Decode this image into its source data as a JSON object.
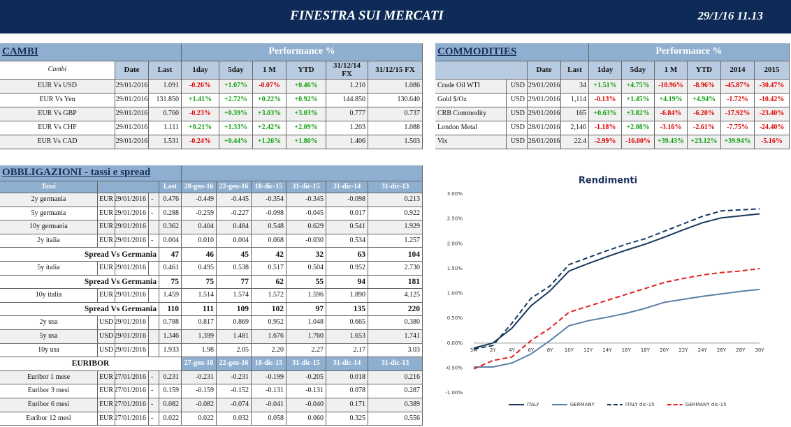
{
  "header": {
    "title": "FINESTRA SUI MERCATI",
    "datetime": "29/1/16 11.13"
  },
  "cambi": {
    "title": "CAMBI",
    "performance": "Performance  %",
    "columns": [
      "Cambi",
      "Date",
      "Last",
      "1day",
      "5day",
      "1 M",
      "YTD",
      "31/12/14 FX",
      "31/12/15  FX"
    ],
    "rows": [
      [
        "EUR Vs USD",
        "29/01/2016",
        "1.091",
        "-0.26%",
        "+1.07%",
        "-0.07%",
        "+0.46%",
        "1.210",
        "1.086"
      ],
      [
        "EUR Vs Yen",
        "29/01/2016",
        "131.850",
        "+1.41%",
        "+2.72%",
        "+0.22%",
        "+0.92%",
        "144.850",
        "130.640"
      ],
      [
        "EUR Vs GBP",
        "29/01/2016",
        "0.760",
        "-0.23%",
        "+0.39%",
        "+3.03%",
        "+3.03%",
        "0.777",
        "0.737"
      ],
      [
        "EUR Vs CHF",
        "29/01/2016",
        "1.111",
        "+0.21%",
        "+1.33%",
        "+2.42%",
        "+2.09%",
        "1.203",
        "1.088"
      ],
      [
        "EUR Vs CAD",
        "29/01/2016",
        "1.531",
        "-0.24%",
        "+0.44%",
        "+1.26%",
        "+1.80%",
        "1.406",
        "1.503"
      ]
    ]
  },
  "commodities": {
    "title": "COMMODITIES",
    "performance": "Performance  %",
    "columns": [
      "Date",
      "Last",
      "1day",
      "5day",
      "1 M",
      "YTD",
      "2014",
      "2015"
    ],
    "rows": [
      [
        "Crude Oil WTI",
        "USD",
        "29/01/2016",
        "34",
        "+1.51%",
        "+4.75%",
        "-10.96%",
        "-8.96%",
        "-45.87%",
        "-30.47%"
      ],
      [
        "Gold $/Oz",
        "USD",
        "29/01/2016",
        "1,114",
        "-0.13%",
        "+1.45%",
        "+4.19%",
        "+4.94%",
        "-1.72%",
        "-10.42%"
      ],
      [
        "CRB Commodity",
        "USD",
        "29/01/2016",
        "165",
        "+0.63%",
        "+3.82%",
        "-6.84%",
        "-6.20%",
        "-17.92%",
        "-23.40%"
      ],
      [
        "London Metal",
        "USD",
        "28/01/2016",
        "2,146",
        "-1.18%",
        "+2.08%",
        "-3.16%",
        "-2.61%",
        "-7.75%",
        "-24.40%"
      ],
      [
        "Vix",
        "USD",
        "28/01/2016",
        "22.4",
        "-2.99%",
        "-16.00%",
        "+39.43%",
        "+23.12%",
        "+39.94%",
        "-5.16%"
      ]
    ]
  },
  "obbligazioni": {
    "title": "OBBLIGAZIONI - tassi e spread",
    "columns": [
      "Tassi",
      "Last",
      "28-gen-16",
      "22-gen-16",
      "18-dic-15",
      "31-dic-15",
      "31-dic-14",
      "31-dic-13"
    ],
    "rows": [
      {
        "name": "2y germania",
        "currency": "EUR",
        "date": "29/01/2016",
        "flag": "-",
        "last": "0.476",
        "values": [
          "-0.449",
          "-0.445",
          "-0.354",
          "-0.345",
          "-0.098",
          "0.213"
        ]
      },
      {
        "name": "5y germania",
        "currency": "EUR",
        "date": "29/01/2016",
        "flag": "-",
        "last": "0.288",
        "values": [
          "-0.259",
          "-0.227",
          "-0.098",
          "-0.045",
          "0.017",
          "0.922"
        ]
      },
      {
        "name": "10y germania",
        "currency": "EUR",
        "date": "29/01/2016",
        "last": "0.362",
        "values": [
          "0.404",
          "0.484",
          "0.548",
          "0.629",
          "0.541",
          "1.929"
        ]
      },
      {
        "name": "2y italia",
        "currency": "EUR",
        "date": "29/01/2016",
        "flag": "-",
        "last": "0.004",
        "values": [
          "0.010",
          "0.004",
          "0.068",
          "-0.030",
          "0.534",
          "1.257"
        ]
      },
      {
        "name": "Spread Vs Germania",
        "last": "47",
        "values": [
          "46",
          "45",
          "42",
          "32",
          "63",
          "104"
        ]
      },
      {
        "name": "5y italia",
        "currency": "EUR",
        "date": "29/01/2016",
        "last": "0.461",
        "values": [
          "0.495",
          "0.538",
          "0.517",
          "0.504",
          "0.952",
          "2.730"
        ]
      },
      {
        "name": "Spread Vs Germania",
        "last": "75",
        "values": [
          "75",
          "77",
          "62",
          "55",
          "94",
          "181"
        ]
      },
      {
        "name": "10y italia",
        "currency": "EUR",
        "date": "29/01/2016",
        "last": "1.459",
        "values": [
          "1.514",
          "1.574",
          "1.572",
          "1.596",
          "1.890",
          "4.125"
        ]
      },
      {
        "name": "Spread Vs Germania",
        "last": "110",
        "values": [
          "111",
          "109",
          "102",
          "97",
          "135",
          "220"
        ]
      },
      {
        "name": "2y usa",
        "currency": "USD",
        "date": "29/01/2016",
        "last": "0.788",
        "values": [
          "0.817",
          "0.869",
          "0.952",
          "1.048",
          "0.665",
          "0.380"
        ]
      },
      {
        "name": "5y usa",
        "currency": "USD",
        "date": "29/01/2016",
        "last": "1.346",
        "values": [
          "1.399",
          "1.481",
          "1.676",
          "1.760",
          "1.653",
          "1.741"
        ]
      },
      {
        "name": "10y usa",
        "currency": "USD",
        "date": "29/01/2016",
        "last": "1.933",
        "values": [
          "1.98",
          "2.05",
          "2.20",
          "2.27",
          "2.17",
          "3.03"
        ]
      }
    ],
    "euribor": {
      "title": "EURIBOR",
      "columns": [
        "27-gen-16",
        "22-gen-16",
        "18-dic-15",
        "31-dic-15",
        "31-dic-14",
        "31-dic-13"
      ],
      "rows": [
        {
          "name": "Euribor 1 mese",
          "currency": "EUR",
          "date": "27/01/2016",
          "flag": "-",
          "last": "0.231",
          "values": [
            "-0.231",
            "-0.231",
            "-0.199",
            "-0.205",
            "0.018",
            "0.216"
          ]
        },
        {
          "name": "Euribor 3 mesi",
          "currency": "EUR",
          "date": "27/01/2016",
          "flag": "-",
          "last": "0.159",
          "values": [
            "-0.159",
            "-0.152",
            "-0.131",
            "-0.131",
            "0.078",
            "0.287"
          ]
        },
        {
          "name": "Euribor 6 mesi",
          "currency": "EUR",
          "date": "27/01/2016",
          "flag": "-",
          "last": "0.082",
          "values": [
            "-0.082",
            "-0.074",
            "-0.041",
            "-0.040",
            "0.171",
            "0.389"
          ]
        },
        {
          "name": "Euribor 12 mesi",
          "currency": "EUR",
          "date": "27/01/2016",
          "flag": "-",
          "last": "0.022",
          "values": [
            "0.022",
            "0.032",
            "0.058",
            "0.060",
            "0.325",
            "0.556"
          ]
        }
      ]
    }
  },
  "chart_data": {
    "type": "line",
    "title": "Rendimenti",
    "categories": [
      "3M",
      "2Y",
      "4Y",
      "6Y",
      "8Y",
      "10Y",
      "12Y",
      "14Y",
      "16Y",
      "18Y",
      "20Y",
      "22Y",
      "24Y",
      "26Y",
      "28Y",
      "30Y"
    ],
    "ylim": [
      -1,
      3
    ],
    "yticks": [
      {
        "value": -1,
        "label": "-1.00%"
      },
      {
        "value": -0.5,
        "label": "-0.50%"
      },
      {
        "value": 0,
        "label": "0.00%"
      },
      {
        "value": 0.5,
        "label": "0.50%"
      },
      {
        "value": 1,
        "label": "1.00%"
      },
      {
        "value": 1.5,
        "label": "1.50%"
      },
      {
        "value": 2,
        "label": "2.00%"
      },
      {
        "value": 2.5,
        "label": "2.50%"
      },
      {
        "value": 3,
        "label": "3.00%"
      }
    ],
    "series": [
      {
        "name": "ITALY",
        "color": "#17375e",
        "dashed": false,
        "values": [
          -0.1,
          0.0,
          0.3,
          0.75,
          1.05,
          1.45,
          1.6,
          1.74,
          1.87,
          1.99,
          2.13,
          2.28,
          2.42,
          2.52,
          2.56,
          2.6
        ]
      },
      {
        "name": "GERMANY",
        "color": "#5b80a8",
        "dashed": false,
        "values": [
          -0.48,
          -0.48,
          -0.4,
          -0.22,
          0.05,
          0.35,
          0.45,
          0.52,
          0.6,
          0.7,
          0.82,
          0.88,
          0.94,
          0.99,
          1.04,
          1.08
        ]
      },
      {
        "name": "ITALY dic-15",
        "color": "#17375e",
        "dashed": true,
        "values": [
          -0.12,
          -0.05,
          0.4,
          0.9,
          1.15,
          1.58,
          1.72,
          1.86,
          1.99,
          2.1,
          2.25,
          2.4,
          2.55,
          2.66,
          2.68,
          2.7
        ]
      },
      {
        "name": "GERMANY dic-15",
        "color": "#e02020",
        "dashed": true,
        "values": [
          -0.52,
          -0.35,
          -0.28,
          0.05,
          0.3,
          0.62,
          0.74,
          0.86,
          0.98,
          1.1,
          1.22,
          1.3,
          1.37,
          1.42,
          1.45,
          1.5
        ]
      }
    ]
  }
}
